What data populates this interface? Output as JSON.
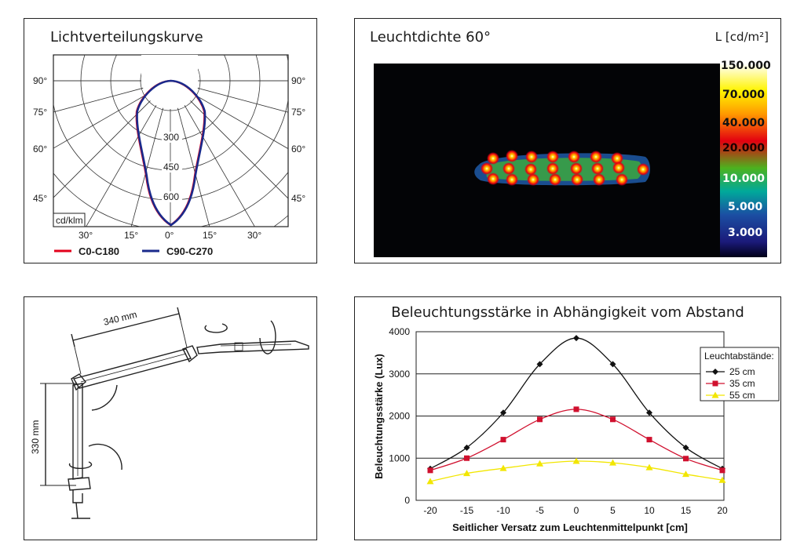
{
  "chart_data": [
    {
      "type": "polar",
      "title": "Lichtverteilungskurve",
      "unit_label": "cd/klm",
      "radial_ticks": [
        "300",
        "450",
        "600"
      ],
      "angle_labels_left": [
        "90°",
        "75°",
        "60°",
        "45°"
      ],
      "angle_labels_right": [
        "90°",
        "75°",
        "60°",
        "45°"
      ],
      "angle_labels_bottom": [
        "30°",
        "15°",
        "0°",
        "15°",
        "30°"
      ],
      "series": [
        {
          "name": "C0-C180",
          "color": "#e3001b"
        },
        {
          "name": "C90-C270",
          "color": "#1a2a8c"
        }
      ]
    },
    {
      "type": "heatmap",
      "title": "Leuchtdichte 60°",
      "scale_title": "L [cd/m²]",
      "scale_labels": [
        "150.000",
        "70.000",
        "40.000",
        "20.000",
        "10.000",
        "5.000",
        "3.000"
      ]
    },
    {
      "type": "line",
      "title": "Beleuchtungsstärke in Abhängigkeit vom Abstand",
      "xlabel": "Seitlicher Versatz zum Leuchtenmittelpunkt [cm]",
      "ylabel": "Beleuchtungsstärke (Lux)",
      "x": [
        -20,
        -15,
        -10,
        -5,
        0,
        5,
        10,
        15,
        20
      ],
      "xlim": [
        -20,
        20
      ],
      "ylim": [
        0,
        4000
      ],
      "yticks": [
        0,
        1000,
        2000,
        3000,
        4000
      ],
      "grid": "horizontal",
      "legend_title": "Leuchtabstände:",
      "legend_position": "top-right",
      "series": [
        {
          "name": "25 cm",
          "color": "#111111",
          "marker": "diamond",
          "values": [
            750,
            1250,
            2080,
            3230,
            3850,
            3230,
            2080,
            1250,
            750
          ]
        },
        {
          "name": "35 cm",
          "color": "#d0102e",
          "marker": "square",
          "values": [
            710,
            1000,
            1440,
            1920,
            2160,
            1920,
            1440,
            990,
            710
          ]
        },
        {
          "name": "55 cm",
          "color": "#f2e600",
          "marker": "triangle",
          "values": [
            450,
            640,
            760,
            870,
            930,
            890,
            780,
            620,
            480
          ]
        }
      ]
    }
  ],
  "lamp_diagram": {
    "arm_length": "340 mm",
    "column_height": "330 mm"
  }
}
